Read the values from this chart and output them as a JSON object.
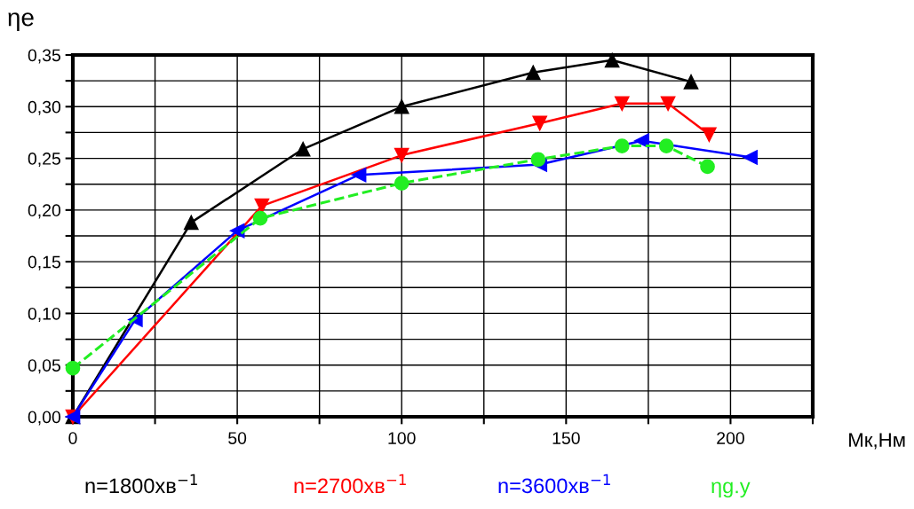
{
  "chart_data": {
    "type": "line",
    "xlabel": "Мк,Нм",
    "ylabel": "ηe",
    "xlim": [
      0,
      225
    ],
    "ylim": [
      0,
      0.35
    ],
    "xticks": [
      0,
      {
        "value": 25,
        "label": null
      },
      50,
      {
        "value": 75,
        "label": null
      },
      100,
      {
        "value": 125,
        "label": null
      },
      150,
      {
        "value": 175,
        "label": null
      },
      200,
      {
        "value": 225,
        "label": null
      }
    ],
    "yticks": [
      {
        "value": 0,
        "label": "0,00"
      },
      {
        "value": 0.025,
        "label": null
      },
      {
        "value": 0.05,
        "label": "0,05"
      },
      {
        "value": 0.075,
        "label": null
      },
      {
        "value": 0.1,
        "label": "0,10"
      },
      {
        "value": 0.125,
        "label": null
      },
      {
        "value": 0.15,
        "label": "0,15"
      },
      {
        "value": 0.175,
        "label": null
      },
      {
        "value": 0.2,
        "label": "0,20"
      },
      {
        "value": 0.225,
        "label": null
      },
      {
        "value": 0.25,
        "label": "0,25"
      },
      {
        "value": 0.275,
        "label": null
      },
      {
        "value": 0.3,
        "label": "0,30"
      },
      {
        "value": 0.325,
        "label": null
      },
      {
        "value": 0.35,
        "label": "0,35"
      }
    ],
    "grid": true,
    "legend": "bottom",
    "series": [
      {
        "name": "n=1800хв$^{−1}$",
        "color": "#000000",
        "marker": "triangle",
        "line_style": "solid",
        "x": [
          0,
          36,
          70,
          100,
          140,
          164,
          188
        ],
        "values": [
          0,
          0.188,
          0.259,
          0.3,
          0.333,
          0.345,
          0.324
        ]
      },
      {
        "name": "n=2700хв$^{−1}$",
        "color": "#ff0000",
        "marker": "triangle",
        "line_style": "solid",
        "x": [
          0,
          57.5,
          100,
          142,
          167,
          181,
          193.5
        ],
        "values": [
          0,
          0.204,
          0.253,
          0.284,
          0.303,
          0.303,
          0.273
        ]
      },
      {
        "name": "n=3600хв$^{−1}$",
        "color": "#0000ff",
        "marker": "triangle",
        "line_style": "solid",
        "x": [
          0,
          19,
          50,
          87,
          142,
          173,
          206
        ],
        "values": [
          0,
          0.094,
          0.18,
          0.234,
          0.244,
          0.267,
          0.251
        ]
      },
      {
        "name": "ηg.y",
        "color": "#22ee22",
        "marker": "circle",
        "line_style": "dashed",
        "x": [
          0,
          57,
          100,
          141.5,
          167,
          180.5,
          193
        ],
        "values": [
          0.047,
          0.192,
          0.226,
          0.249,
          0.262,
          0.262,
          0.242
        ]
      }
    ]
  }
}
